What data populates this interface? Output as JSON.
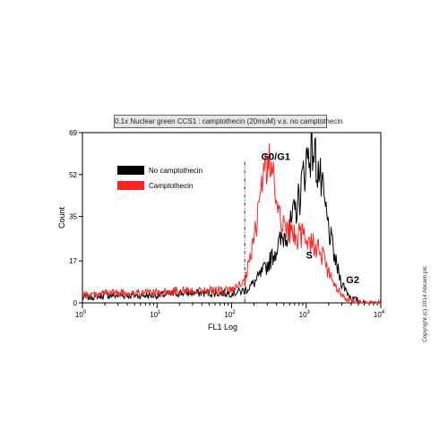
{
  "chart_data": {
    "type": "line",
    "title": "0.1x Nuclear green CCS1 : camptothecin (20muM) v.s. no camptothecin",
    "xlabel": "FL1 Log",
    "ylabel": "Count",
    "xscale": "log",
    "xlim": [
      1,
      10000
    ],
    "ylim": [
      0,
      69
    ],
    "yticks": [
      0,
      17,
      35,
      52,
      69
    ],
    "ytick_labels": [
      "0",
      "17",
      "35",
      "52",
      "69"
    ],
    "xtick_labels": [
      {
        "base": "10",
        "exp": "0"
      },
      {
        "base": "10",
        "exp": "1"
      },
      {
        "base": "10",
        "exp": "2"
      },
      {
        "base": "10",
        "exp": "3"
      },
      {
        "base": "10",
        "exp": "4"
      }
    ],
    "gate_x": 150,
    "legend_position": "top-left",
    "series": [
      {
        "name": "No camptothecin",
        "color": "#000000",
        "x": [
          1,
          2,
          5,
          10,
          20,
          50,
          100,
          150,
          200,
          300,
          400,
          500,
          600,
          800,
          1000,
          1200,
          1500,
          2000,
          2500,
          3000,
          4000,
          6000
        ],
        "y": [
          2,
          3,
          3,
          3,
          4,
          4,
          4,
          5,
          8,
          15,
          22,
          27,
          30,
          42,
          58,
          64,
          52,
          30,
          16,
          8,
          2,
          0
        ]
      },
      {
        "name": "Camptothecin",
        "color": "#ff2222",
        "x": [
          1,
          2,
          5,
          10,
          20,
          50,
          100,
          150,
          200,
          250,
          300,
          350,
          400,
          500,
          600,
          800,
          1000,
          1300,
          1600,
          2000,
          2500,
          3000,
          4000,
          6000
        ],
        "y": [
          3,
          4,
          4,
          4,
          5,
          5,
          5,
          8,
          25,
          48,
          58,
          52,
          42,
          32,
          28,
          27,
          26,
          24,
          20,
          12,
          6,
          3,
          1,
          0
        ]
      }
    ],
    "annotations": [
      {
        "text": "G0/G1",
        "x": 390,
        "y": 58
      },
      {
        "text": "S",
        "x": 1100,
        "y": 18
      },
      {
        "text": "G2",
        "x": 4200,
        "y": 8
      }
    ]
  },
  "copyright": "Copyright (c) 2014 Abcam plc"
}
